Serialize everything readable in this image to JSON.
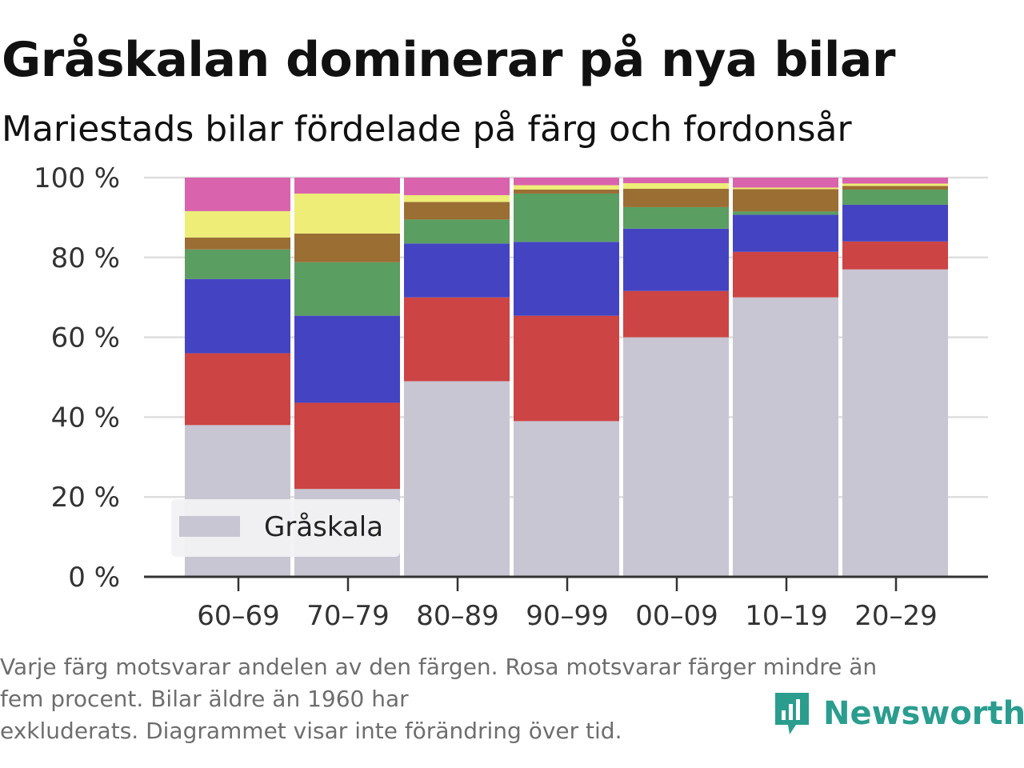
{
  "title": "Gråskalan dominerar på nya bilar",
  "subtitle": "Mariestads bilar fördelade på färg och fordonsår",
  "footnote": {
    "line1": "Varje färg motsvarar andelen av den färgen. Rosa motsvarar färger mindre än",
    "line2": "fem procent. Bilar äldre än 1960 har",
    "line3": "exkluderats. Diagrammet visar inte förändring över tid."
  },
  "brand": {
    "name": "Newsworthy",
    "icon": "newsworthy-logo-icon",
    "color": "#2a9d8f"
  },
  "chart_data": {
    "type": "bar",
    "stacked": true,
    "categories": [
      "60–69",
      "70–79",
      "80–89",
      "90–99",
      "00–09",
      "10–19",
      "20–29"
    ],
    "ylim": [
      0,
      100
    ],
    "yticks": [
      0,
      20,
      40,
      60,
      80,
      100
    ],
    "ytick_labels": [
      "0 %",
      "20 %",
      "40 %",
      "60 %",
      "80 %",
      "100 %"
    ],
    "grid": true,
    "legend": {
      "position": "bottom-left",
      "entries": [
        "Gråskala"
      ]
    },
    "series": [
      {
        "name": "Gråskala",
        "color": "#c8c6d2",
        "values": [
          38,
          22,
          49,
          39,
          60,
          70,
          77
        ]
      },
      {
        "color": "#cc4444",
        "values": [
          18,
          21.6,
          21,
          26.4,
          11.6,
          11.4,
          7
        ]
      },
      {
        "color": "#4444c2",
        "values": [
          18.6,
          21.8,
          13.5,
          18.5,
          15.6,
          9.3,
          9.2
        ]
      },
      {
        "color": "#5a9e62",
        "values": [
          7.4,
          13.4,
          6,
          12.1,
          5.4,
          0.8,
          3.8
        ]
      },
      {
        "color": "#9b6e34",
        "values": [
          3,
          7.2,
          4.4,
          1,
          4.6,
          5.6,
          0.9
        ]
      },
      {
        "color": "#eded78",
        "values": [
          6.6,
          10,
          1.7,
          1.1,
          1.4,
          0.4,
          0.6
        ]
      },
      {
        "color": "#d963ad",
        "values": [
          8.4,
          4,
          4.4,
          1.9,
          1.4,
          2.5,
          1.5
        ]
      }
    ]
  }
}
